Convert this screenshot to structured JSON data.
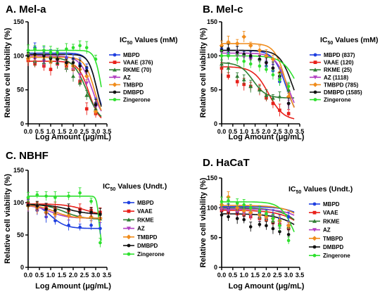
{
  "colors": {
    "MBPD": "#1f3fe0",
    "VAAE": "#e8201a",
    "RKME": "#2e7d32",
    "AZ": "#b23fc2",
    "TMBPD": "#f08c1c",
    "DMBPD": "#111111",
    "Zingerone": "#2ee02e"
  },
  "chart_data": [
    {
      "type": "scatter",
      "panel_label": "A. Mel-a",
      "xlabel": "Log Amount (μg/mL)",
      "ylabel": "Relative cell viability (%)",
      "xlim": [
        0.0,
        3.5
      ],
      "ylim": [
        0,
        150
      ],
      "xticks": [
        "0.0",
        "0.5",
        "1.0",
        "1.5",
        "2.0",
        "2.5",
        "3.0",
        "3.5"
      ],
      "yticks": [
        "0",
        "50",
        "100",
        "150"
      ],
      "legend_title": "IC",
      "legend_sub": "50",
      "legend_rest": " Values (mM)",
      "legend": [
        "MBPD",
        "VAAE  (376)",
        "RKME (70)",
        "AZ",
        "TMBPD",
        "DMBPD",
        "Zingerone"
      ],
      "series": [
        {
          "name": "MBPD",
          "x": [
            0.0,
            0.3,
            0.7,
            1.0,
            1.3,
            1.7,
            2.0,
            2.3,
            2.6,
            3.0
          ],
          "y": [
            102,
            112,
            104,
            103,
            100,
            97,
            95,
            88,
            82,
            30
          ],
          "curve": {
            "top": 104,
            "bottom": 0,
            "ic50": 3.05,
            "hill": 2.2
          }
        },
        {
          "name": "VAAE",
          "x": [
            0.0,
            0.3,
            0.7,
            1.0,
            1.3,
            1.7,
            2.0,
            2.3,
            2.6,
            3.0
          ],
          "y": [
            93,
            88,
            85,
            80,
            88,
            85,
            80,
            62,
            22,
            15
          ],
          "curve": {
            "top": 92,
            "bottom": 0,
            "ic50": 2.7,
            "hill": 1.8
          }
        },
        {
          "name": "RKME",
          "x": [
            0.0,
            0.3,
            0.7,
            1.0,
            1.3,
            1.7,
            2.0,
            2.3,
            2.6,
            3.0
          ],
          "y": [
            98,
            92,
            90,
            92,
            90,
            82,
            70,
            60,
            42,
            22
          ],
          "curve": {
            "top": 98,
            "bottom": 0,
            "ic50": 2.6,
            "hill": 1.4
          }
        },
        {
          "name": "AZ",
          "x": [
            0.0,
            0.3,
            0.7,
            1.0,
            1.3,
            1.7,
            2.0,
            2.3,
            2.6,
            3.0
          ],
          "y": [
            100,
            95,
            92,
            96,
            92,
            88,
            80,
            72,
            60,
            25
          ],
          "curve": {
            "top": 100,
            "bottom": 0,
            "ic50": 2.85,
            "hill": 1.6
          }
        },
        {
          "name": "TMBPD",
          "x": [
            0.0,
            0.3,
            0.7,
            1.0,
            1.3,
            1.7,
            2.0,
            2.3,
            2.6,
            3.0
          ],
          "y": [
            96,
            100,
            98,
            92,
            95,
            88,
            85,
            80,
            70,
            18
          ],
          "curve": {
            "top": 98,
            "bottom": 0,
            "ic50": 2.95,
            "hill": 2.0
          }
        },
        {
          "name": "DMBPD",
          "x": [
            0.0,
            0.3,
            0.7,
            1.0,
            1.3,
            1.7,
            2.0,
            2.3,
            2.6,
            3.0
          ],
          "y": [
            100,
            102,
            100,
            96,
            95,
            90,
            90,
            85,
            78,
            28
          ],
          "curve": {
            "top": 102,
            "bottom": 0,
            "ic50": 3.05,
            "hill": 2.4
          }
        },
        {
          "name": "Zingerone",
          "x": [
            0.0,
            0.3,
            0.7,
            1.0,
            1.3,
            1.7,
            2.0,
            2.3,
            2.6,
            3.0
          ],
          "y": [
            108,
            110,
            108,
            105,
            105,
            110,
            112,
            115,
            112,
            95
          ],
          "curve": {
            "top": 108,
            "bottom": 0,
            "ic50": 3.25,
            "hill": 3.0
          }
        }
      ]
    },
    {
      "type": "scatter",
      "panel_label": "B. Mel-c",
      "xlabel": "Log Amount (μg/mL)",
      "ylabel": "Relative cell viability (%)",
      "xlim": [
        0.0,
        3.5
      ],
      "ylim": [
        0,
        150
      ],
      "xticks": [
        "0.0",
        "0.5",
        "1.0",
        "1.5",
        "2.0",
        "2.5",
        "3.0",
        "3.5"
      ],
      "yticks": [
        "0",
        "50",
        "100",
        "150"
      ],
      "legend_title": "IC",
      "legend_sub": "50",
      "legend_rest": " Values (mM)",
      "legend": [
        "MBPD (837)",
        "VAAE  (120)",
        "RKME (25)",
        "AZ (1118)",
        "TMBPD (785)",
        "DMBPD (1585)",
        "Zingerone"
      ],
      "series": [
        {
          "name": "MBPD",
          "x": [
            0.0,
            0.3,
            0.7,
            1.0,
            1.3,
            1.7,
            2.0,
            2.3,
            2.6,
            3.0
          ],
          "y": [
            110,
            105,
            105,
            100,
            98,
            95,
            85,
            78,
            62,
            30
          ],
          "curve": {
            "top": 108,
            "bottom": 0,
            "ic50": 2.9,
            "hill": 1.5
          }
        },
        {
          "name": "VAAE",
          "x": [
            0.0,
            0.3,
            0.7,
            1.0,
            1.3,
            1.7,
            2.0,
            2.3,
            2.6,
            3.0
          ],
          "y": [
            82,
            70,
            62,
            58,
            55,
            50,
            38,
            30,
            20,
            15
          ],
          "curve": {
            "top": 84,
            "bottom": 5,
            "ic50": 2.1,
            "hill": 1.3
          }
        },
        {
          "name": "RKME",
          "x": [
            0.0,
            0.3,
            0.7,
            1.0,
            1.3,
            1.7,
            2.0,
            2.3,
            2.6,
            3.0
          ],
          "y": [
            88,
            82,
            70,
            65,
            55,
            50,
            42,
            38,
            40,
            50
          ],
          "curve": {
            "top": 90,
            "bottom": 38,
            "ic50": 1.4,
            "hill": 1.5
          }
        },
        {
          "name": "AZ",
          "x": [
            0.0,
            0.3,
            0.7,
            1.0,
            1.3,
            1.7,
            2.0,
            2.3,
            2.6,
            3.0
          ],
          "y": [
            105,
            100,
            100,
            98,
            95,
            92,
            88,
            80,
            65,
            28
          ],
          "curve": {
            "top": 104,
            "bottom": 0,
            "ic50": 3.0,
            "hill": 1.5
          }
        },
        {
          "name": "TMBPD",
          "x": [
            0.0,
            0.3,
            0.7,
            1.0,
            1.3,
            1.7,
            2.0,
            2.3,
            2.6,
            3.0
          ],
          "y": [
            115,
            120,
            118,
            128,
            115,
            108,
            100,
            95,
            75,
            40
          ],
          "curve": {
            "top": 118,
            "bottom": 0,
            "ic50": 2.9,
            "hill": 1.7
          }
        },
        {
          "name": "DMBPD",
          "x": [
            0.0,
            0.3,
            0.7,
            1.0,
            1.3,
            1.7,
            2.0,
            2.3,
            2.6,
            3.0
          ],
          "y": [
            108,
            110,
            105,
            102,
            100,
            95,
            90,
            82,
            70,
            30
          ],
          "curve": {
            "top": 108,
            "bottom": 0,
            "ic50": 3.2,
            "hill": 1.5
          }
        },
        {
          "name": "Zingerone",
          "x": [
            0.0,
            0.3,
            0.7,
            1.0,
            1.3,
            1.7,
            2.0,
            2.3,
            2.6,
            3.0
          ],
          "y": [
            100,
            100,
            95,
            92,
            88,
            85,
            80,
            72,
            65,
            55
          ],
          "curve": {
            "top": 100,
            "bottom": 0,
            "ic50": 3.5,
            "hill": 1.2
          }
        }
      ]
    },
    {
      "type": "scatter",
      "panel_label": "C. NBHF",
      "xlabel": "Log Amount (μg/mL)",
      "ylabel": "Relative cell viability (%)",
      "xlim": [
        0.0,
        3.5
      ],
      "ylim": [
        0,
        150
      ],
      "xticks": [
        "0.0",
        "0.5",
        "1.0",
        "1.5",
        "2.0",
        "2.5",
        "3.0",
        "3.5"
      ],
      "yticks": [
        "0",
        "50",
        "100",
        "150"
      ],
      "legend_title": "IC",
      "legend_sub": "50",
      "legend_rest": " Values (Undt.)",
      "legend": [
        "MBPD",
        "VAAE",
        "RKME",
        "AZ",
        "TMBPD",
        "DMBPD",
        "Zingerone"
      ],
      "series": [
        {
          "name": "MBPD",
          "x": [
            0.0,
            0.4,
            0.8,
            1.2,
            1.8,
            2.3,
            2.8,
            3.2
          ],
          "y": [
            100,
            88,
            78,
            72,
            65,
            62,
            65,
            60
          ],
          "curve": {
            "top": 100,
            "bottom": 60,
            "ic50": 1.0,
            "hill": 1.3
          }
        },
        {
          "name": "VAAE",
          "x": [
            0.0,
            0.4,
            0.8,
            1.2,
            1.8,
            2.3,
            2.8,
            3.2
          ],
          "y": [
            98,
            95,
            92,
            92,
            88,
            90,
            88,
            85
          ],
          "curve": {
            "top": 98,
            "bottom": 80,
            "ic50": 2.5,
            "hill": 1.0
          }
        },
        {
          "name": "RKME",
          "x": [
            0.0,
            0.4,
            0.8,
            1.2,
            1.8,
            2.3,
            2.8,
            3.2
          ],
          "y": [
            96,
            90,
            86,
            85,
            82,
            80,
            78,
            75
          ],
          "curve": {
            "top": 98,
            "bottom": 74,
            "ic50": 1.6,
            "hill": 1.0
          }
        },
        {
          "name": "AZ",
          "x": [
            0.0,
            0.4,
            0.8,
            1.2,
            1.8,
            2.3,
            2.8,
            3.2
          ],
          "y": [
            95,
            88,
            82,
            80,
            78,
            78,
            76,
            75
          ],
          "curve": {
            "top": 96,
            "bottom": 76,
            "ic50": 1.0,
            "hill": 1.2
          }
        },
        {
          "name": "TMBPD",
          "x": [
            0.0,
            0.4,
            0.8,
            1.2,
            1.8,
            2.3,
            2.8,
            3.2
          ],
          "y": [
            95,
            92,
            85,
            82,
            80,
            78,
            78,
            76
          ],
          "curve": {
            "top": 96,
            "bottom": 76,
            "ic50": 1.2,
            "hill": 1.2
          }
        },
        {
          "name": "DMBPD",
          "x": [
            0.0,
            0.4,
            0.8,
            1.2,
            1.8,
            2.3,
            2.8,
            3.2
          ],
          "y": [
            96,
            95,
            90,
            88,
            90,
            85,
            85,
            82
          ],
          "curve": {
            "top": 97,
            "bottom": 82,
            "ic50": 1.8,
            "hill": 1.0
          }
        },
        {
          "name": "Zingerone",
          "x": [
            0.0,
            0.4,
            0.8,
            1.2,
            1.8,
            2.3,
            2.8,
            3.2
          ],
          "y": [
            108,
            112,
            110,
            108,
            110,
            115,
            102,
            38
          ],
          "curve": {
            "top": 110,
            "bottom": 30,
            "ic50": 3.15,
            "hill": 8.0
          }
        }
      ]
    },
    {
      "type": "scatter",
      "panel_label": "D. HaCaT",
      "xlabel": "Log Amount (μg/mL)",
      "ylabel": "Relative cell viability (%)",
      "xlim": [
        0.0,
        3.5
      ],
      "ylim": [
        0,
        150
      ],
      "xticks": [
        "0.0",
        "0.5",
        "1.0",
        "1.5",
        "2.0",
        "2.5",
        "3.0",
        "3.5"
      ],
      "yticks": [
        "0",
        "50",
        "100",
        "150"
      ],
      "legend_title": "IC",
      "legend_sub": "50",
      "legend_rest": " Values (Undt.)",
      "legend": [
        "MBPD",
        "VAAE",
        "RKME",
        "AZ",
        "TMBPD",
        "DMBPD",
        "Zingerone"
      ],
      "series": [
        {
          "name": "MBPD",
          "x": [
            0.0,
            0.3,
            0.7,
            1.0,
            1.3,
            1.7,
            2.0,
            2.3,
            2.6,
            3.0
          ],
          "y": [
            102,
            100,
            98,
            95,
            92,
            92,
            90,
            88,
            82,
            85
          ],
          "curve": {
            "top": 102,
            "bottom": 0,
            "ic50": 4.5,
            "hill": 0.8
          }
        },
        {
          "name": "VAAE",
          "x": [
            0.0,
            0.3,
            0.7,
            1.0,
            1.3,
            1.7,
            2.0,
            2.3,
            2.6,
            3.0
          ],
          "y": [
            95,
            92,
            90,
            88,
            85,
            82,
            80,
            75,
            72,
            65
          ],
          "curve": {
            "top": 96,
            "bottom": 0,
            "ic50": 4.2,
            "hill": 0.7
          }
        },
        {
          "name": "RKME",
          "x": [
            0.0,
            0.3,
            0.7,
            1.0,
            1.3,
            1.7,
            2.0,
            2.3,
            2.6,
            3.0
          ],
          "y": [
            100,
            98,
            95,
            92,
            90,
            85,
            82,
            78,
            72,
            68
          ],
          "curve": {
            "top": 100,
            "bottom": 0,
            "ic50": 4.0,
            "hill": 0.8
          }
        },
        {
          "name": "AZ",
          "x": [
            0.0,
            0.3,
            0.7,
            1.0,
            1.3,
            1.7,
            2.0,
            2.3,
            2.6,
            3.0
          ],
          "y": [
            98,
            95,
            92,
            90,
            88,
            85,
            82,
            80,
            75,
            70
          ],
          "curve": {
            "top": 98,
            "bottom": 0,
            "ic50": 4.4,
            "hill": 0.8
          }
        },
        {
          "name": "TMBPD",
          "x": [
            0.0,
            0.3,
            0.7,
            1.0,
            1.3,
            1.7,
            2.0,
            2.3,
            2.6,
            3.0
          ],
          "y": [
            105,
            118,
            100,
            95,
            92,
            88,
            85,
            82,
            78,
            70
          ],
          "curve": {
            "top": 104,
            "bottom": 0,
            "ic50": 4.3,
            "hill": 0.8
          }
        },
        {
          "name": "DMBPD",
          "x": [
            0.0,
            0.3,
            0.7,
            1.0,
            1.3,
            1.7,
            2.0,
            2.3,
            2.6,
            3.0
          ],
          "y": [
            88,
            85,
            82,
            80,
            68,
            72,
            70,
            65,
            60,
            55
          ],
          "curve": {
            "top": 90,
            "bottom": 0,
            "ic50": 4.1,
            "hill": 0.7
          }
        },
        {
          "name": "Zingerone",
          "x": [
            0.0,
            0.3,
            0.7,
            1.0,
            1.3,
            1.7,
            2.0,
            2.3,
            2.6,
            3.0
          ],
          "y": [
            110,
            112,
            108,
            105,
            100,
            95,
            90,
            82,
            70,
            45
          ],
          "curve": {
            "top": 110,
            "bottom": 0,
            "ic50": 3.3,
            "hill": 1.4
          }
        }
      ]
    }
  ]
}
